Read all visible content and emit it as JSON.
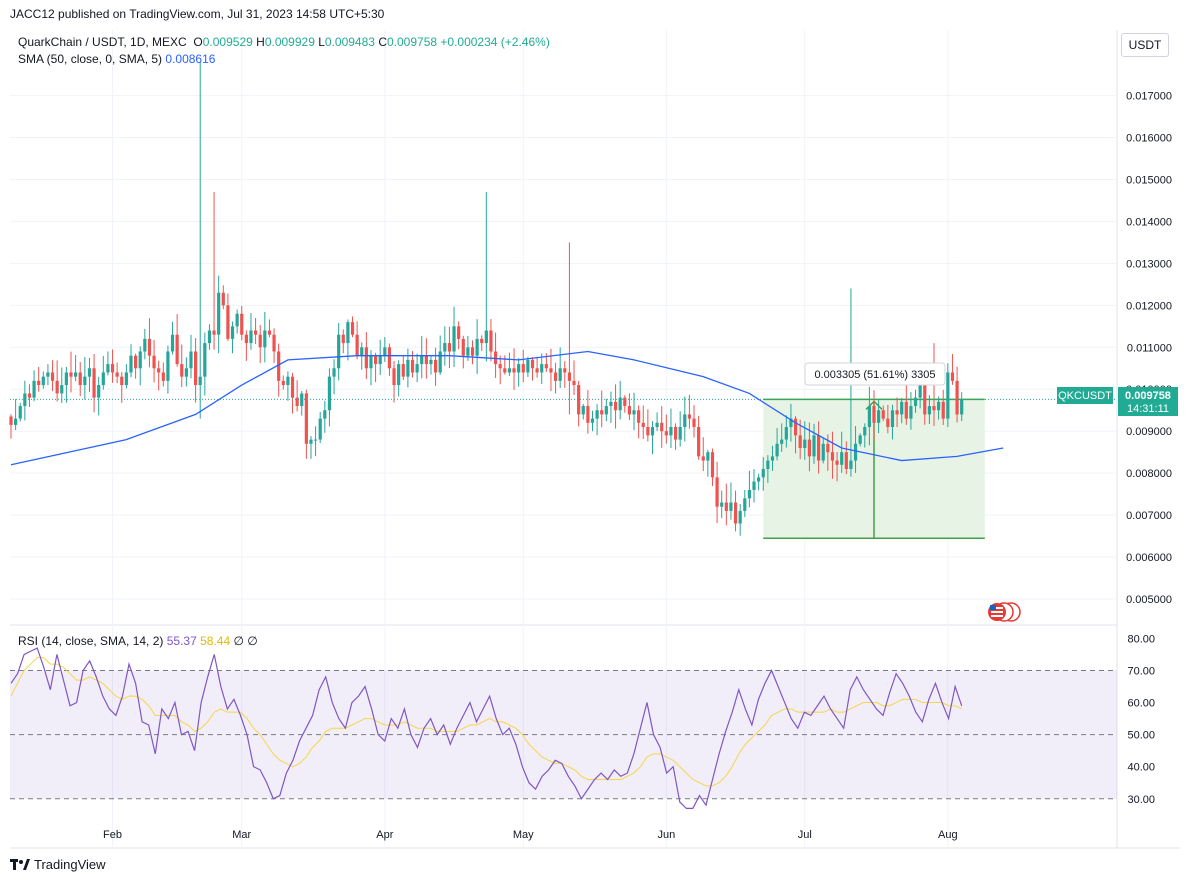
{
  "header": {
    "published": "JACC12 published on TradingView.com, Jul 31, 2023 14:58 UTC+5:30",
    "symbol_line": "QuarkChain / USDT, 1D, MEXC",
    "o_label": "O",
    "o_value": "0.009529",
    "h_label": "H",
    "h_value": "0.009929",
    "l_label": "L",
    "l_value": "0.009483",
    "c_label": "C",
    "c_value": "0.009758",
    "change": "+0.000234 (+2.46%)",
    "sma_label": "SMA (50, close, 0, SMA, 5)",
    "sma_value": "0.008616",
    "currency_button": "USDT"
  },
  "rsi_header": {
    "label": "RSI (14, close, SMA, 14, 2)",
    "value1": "55.37",
    "value2": "58.44",
    "value3": "∅ ∅"
  },
  "price_tag": {
    "symbol": "QKCUSDT",
    "price": "0.009758",
    "countdown": "14:31:11"
  },
  "measure_label": "0.003305 (51.61%) 3305",
  "footer": {
    "brand": "TradingView"
  },
  "colors": {
    "up": "#26a69a",
    "down": "#ef5350",
    "sma": "#2962ff",
    "rsi": "#7e57c2",
    "rsi_ma": "#f5d54b",
    "range_fill": "#e3f2e1",
    "range_line": "#43a047",
    "tag": "#22ab94",
    "flag": "#e53935"
  },
  "chart_data": [
    {
      "type": "candlestick",
      "title": "QuarkChain / USDT, 1D, MEXC",
      "ylim": [
        0.0045,
        0.0178
      ],
      "y_ticks": [
        "0.017000",
        "0.016000",
        "0.015000",
        "0.014000",
        "0.013000",
        "0.012000",
        "0.011000",
        "0.010000",
        "0.009000",
        "0.008000",
        "0.007000",
        "0.006000",
        "0.005000"
      ],
      "x_ticks": [
        "Feb",
        "Mar",
        "Apr",
        "May",
        "Jun",
        "Jul",
        "Aug"
      ],
      "x_tick_index": [
        22,
        50,
        81,
        111,
        142,
        172,
        203
      ],
      "last_close": 0.009758,
      "close": [
        0.00915,
        0.0093,
        0.0096,
        0.0099,
        0.0098,
        0.0102,
        0.0101,
        0.0103,
        0.0104,
        0.0102,
        0.0099,
        0.0101,
        0.0104,
        0.0103,
        0.0104,
        0.0101,
        0.0103,
        0.0105,
        0.0098,
        0.0101,
        0.0104,
        0.0106,
        0.0104,
        0.0103,
        0.0101,
        0.0104,
        0.0108,
        0.0105,
        0.0109,
        0.0112,
        0.0108,
        0.0105,
        0.0104,
        0.0102,
        0.0109,
        0.0113,
        0.0106,
        0.0103,
        0.0105,
        0.0109,
        0.0101,
        0.0103,
        0.0111,
        0.0114,
        0.0113,
        0.0123,
        0.012,
        0.0112,
        0.0115,
        0.0118,
        0.0113,
        0.0111,
        0.0114,
        0.0113,
        0.011,
        0.0114,
        0.0113,
        0.0109,
        0.0102,
        0.0101,
        0.0103,
        0.0098,
        0.0096,
        0.0099,
        0.0087,
        0.0088,
        0.0088,
        0.0093,
        0.0095,
        0.0103,
        0.0105,
        0.0113,
        0.0111,
        0.0116,
        0.0113,
        0.0108,
        0.011,
        0.0105,
        0.0108,
        0.0106,
        0.0108,
        0.011,
        0.0105,
        0.0101,
        0.0106,
        0.0103,
        0.0107,
        0.0104,
        0.0106,
        0.0108,
        0.0106,
        0.0107,
        0.0104,
        0.0109,
        0.0111,
        0.0109,
        0.0115,
        0.0112,
        0.0108,
        0.011,
        0.0108,
        0.0112,
        0.0111,
        0.0114,
        0.0109,
        0.0106,
        0.0105,
        0.0104,
        0.0105,
        0.0104,
        0.0106,
        0.0104,
        0.0107,
        0.0105,
        0.0104,
        0.0106,
        0.0105,
        0.0104,
        0.0102,
        0.0105,
        0.0104,
        0.0102,
        0.0101,
        0.0094,
        0.0096,
        0.0092,
        0.0093,
        0.0095,
        0.0094,
        0.0096,
        0.0097,
        0.0095,
        0.0098,
        0.0096,
        0.0094,
        0.0095,
        0.0092,
        0.0091,
        0.0089,
        0.0091,
        0.0092,
        0.009,
        0.0089,
        0.0091,
        0.0088,
        0.0091,
        0.0094,
        0.0093,
        0.0091,
        0.0084,
        0.0083,
        0.0085,
        0.0079,
        0.0072,
        0.0073,
        0.0071,
        0.0073,
        0.0068,
        0.0071,
        0.0074,
        0.0076,
        0.0078,
        0.0079,
        0.0081,
        0.0083,
        0.0084,
        0.0087,
        0.0088,
        0.0091,
        0.0093,
        0.0089,
        0.0086,
        0.0088,
        0.0084,
        0.0089,
        0.0083,
        0.0087,
        0.0085,
        0.0083,
        0.0082,
        0.0085,
        0.0081,
        0.0083,
        0.0087,
        0.0089,
        0.0091,
        0.0096,
        0.0092,
        0.0095,
        0.0093,
        0.0091,
        0.0095,
        0.0094,
        0.0097,
        0.0093,
        0.0096,
        0.0098,
        0.0101,
        0.0094,
        0.0096,
        0.0095,
        0.0097,
        0.0093,
        0.0104,
        0.0102,
        0.0094,
        0.009758
      ],
      "wick_extremes": [
        {
          "index": 41,
          "high": 0.0178,
          "low": 0.0093
        },
        {
          "index": 44,
          "high": 0.0147
        },
        {
          "index": 103,
          "high": 0.0147
        },
        {
          "index": 121,
          "high": 0.0135,
          "low": 0.0094
        },
        {
          "index": 182,
          "high": 0.0124
        },
        {
          "index": 200,
          "high": 0.0111
        }
      ],
      "sma50": [
        {
          "index": 0,
          "value": 0.0082
        },
        {
          "index": 25,
          "value": 0.0088
        },
        {
          "index": 40,
          "value": 0.0094
        },
        {
          "index": 50,
          "value": 0.0101
        },
        {
          "index": 60,
          "value": 0.0107
        },
        {
          "index": 75,
          "value": 0.0108
        },
        {
          "index": 95,
          "value": 0.0108
        },
        {
          "index": 110,
          "value": 0.0107
        },
        {
          "index": 125,
          "value": 0.0109
        },
        {
          "index": 135,
          "value": 0.0107
        },
        {
          "index": 150,
          "value": 0.0103
        },
        {
          "index": 160,
          "value": 0.0099
        },
        {
          "index": 170,
          "value": 0.0092
        },
        {
          "index": 180,
          "value": 0.0086
        },
        {
          "index": 193,
          "value": 0.0083
        },
        {
          "index": 205,
          "value": 0.0084
        },
        {
          "index": 215,
          "value": 0.0086
        }
      ],
      "measure": {
        "from_index": 163,
        "to_index": 211,
        "low": 0.00645,
        "high": 0.009758,
        "change": 0.003305,
        "percent": 51.61
      }
    },
    {
      "type": "line",
      "title": "RSI (14, close, SMA, 14, 2)",
      "ylim": [
        24,
        82
      ],
      "y_ticks": [
        "80.00",
        "70.00",
        "60.00",
        "50.00",
        "40.00",
        "30.00"
      ],
      "bands": [
        30,
        50,
        70
      ],
      "series": [
        {
          "values": [
            66,
            69,
            75,
            76,
            77,
            71,
            64,
            75,
            67,
            59,
            60,
            70,
            73,
            68,
            62,
            58,
            56,
            62,
            72,
            66,
            54,
            53,
            44,
            58,
            55,
            60,
            50,
            51,
            45,
            60,
            68,
            75,
            65,
            58,
            61,
            56,
            50,
            40,
            39,
            35,
            30,
            31,
            38,
            42,
            48,
            52,
            56,
            64,
            68,
            60,
            55,
            52,
            60,
            62,
            65,
            58,
            50,
            48,
            55,
            52,
            58,
            50,
            46,
            52,
            55,
            50,
            53,
            47,
            52,
            56,
            60,
            54,
            58,
            62,
            55,
            50,
            52,
            47,
            40,
            35,
            33,
            37,
            39,
            42,
            41,
            37,
            34,
            30,
            33,
            36,
            38,
            36,
            39,
            37,
            38,
            44,
            52,
            60,
            50,
            46,
            38,
            40,
            29,
            27,
            27,
            31,
            28,
            36,
            44,
            51,
            57,
            64,
            58,
            53,
            61,
            66,
            70,
            65,
            60,
            55,
            52,
            57,
            56,
            59,
            62,
            58,
            55,
            52,
            64,
            68,
            64,
            61,
            58,
            56,
            63,
            69,
            66,
            62,
            57,
            54,
            61,
            66,
            60,
            55,
            65,
            59
          ]
        },
        {
          "values": [
            62,
            66,
            70,
            72,
            74,
            74,
            72,
            72,
            71,
            69,
            67,
            67,
            68,
            67,
            66,
            64,
            62,
            61,
            62,
            62,
            61,
            59,
            56,
            56,
            56,
            56,
            54,
            53,
            51,
            52,
            54,
            57,
            58,
            57,
            57,
            57,
            55,
            52,
            50,
            47,
            44,
            42,
            41,
            40,
            41,
            43,
            46,
            48,
            51,
            52,
            52,
            52,
            53,
            54,
            55,
            55,
            54,
            53,
            53,
            53,
            54,
            53,
            52,
            52,
            52,
            51,
            51,
            51,
            51,
            52,
            53,
            53,
            54,
            55,
            54,
            54,
            53,
            52,
            50,
            47,
            45,
            43,
            42,
            41,
            41,
            40,
            39,
            37,
            36,
            36,
            36,
            36,
            36,
            36,
            37,
            38,
            40,
            43,
            44,
            44,
            43,
            42,
            40,
            38,
            36,
            35,
            34,
            34,
            35,
            37,
            40,
            44,
            47,
            49,
            51,
            53,
            56,
            57,
            58,
            58,
            57,
            57,
            57,
            57,
            57,
            58,
            57,
            57,
            58,
            59,
            60,
            60,
            60,
            59,
            59,
            60,
            61,
            61,
            61,
            60,
            60,
            60,
            60,
            59,
            59,
            58
          ]
        }
      ]
    }
  ]
}
